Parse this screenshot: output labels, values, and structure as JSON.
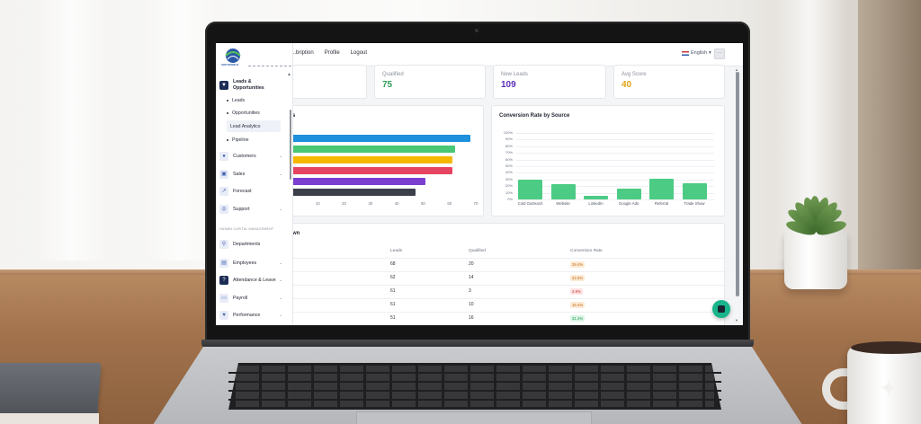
{
  "header": {
    "nav": [
      "...bription",
      "Profile",
      "Logout"
    ],
    "language": "English",
    "language_caret": "▾"
  },
  "sidebar": {
    "logo_text": "SOFTWORLD",
    "active_group": "Leads & Opportunities",
    "sub_items": [
      "Leads",
      "Opportunities",
      "Lead Analytics",
      "Pipeline"
    ],
    "groups": [
      {
        "label": "Customers",
        "icon": "person-icon"
      },
      {
        "label": "Sales",
        "icon": "sales-icon"
      },
      {
        "label": "Forecast",
        "icon": "forecast-icon"
      },
      {
        "label": "Support",
        "icon": "support-icon"
      }
    ],
    "section_label": "HUMAN CAPITAL MANAGEMENT",
    "hcm_groups": [
      {
        "label": "Departments",
        "icon": "departments-icon"
      },
      {
        "label": "Employees",
        "icon": "employees-icon"
      },
      {
        "label": "Attendance & Leave",
        "icon": "attendance-icon"
      },
      {
        "label": "Payroll",
        "icon": "payroll-icon"
      },
      {
        "label": "Performance",
        "icon": "performance-icon"
      }
    ]
  },
  "kpis": [
    {
      "label": "Qualified",
      "value": "75",
      "color": "#2e9e57"
    },
    {
      "label": "New Leads",
      "value": "109",
      "color": "#5b2fb8"
    },
    {
      "label": "Avg Score",
      "value": "40",
      "color": "#e0a413"
    }
  ],
  "left_chart_title_fragment": "s",
  "chart_data": [
    {
      "type": "bar",
      "orientation": "horizontal",
      "title": "",
      "x_ticks": [
        "10",
        "20",
        "30",
        "40",
        "50",
        "60",
        "70"
      ],
      "xlim": [
        0,
        70
      ],
      "values": [
        68,
        62,
        61,
        61,
        51,
        47
      ],
      "colors": [
        "#1e90dc",
        "#48c774",
        "#f5b800",
        "#e64561",
        "#7a3fd1",
        "#3b3f4a"
      ]
    },
    {
      "type": "bar",
      "title": "Conversion Rate by Source",
      "categories": [
        "Cold Outreach",
        "Website",
        "LinkedIn",
        "Google Ads",
        "Referral",
        "Trade Show"
      ],
      "values": [
        29.4,
        22.5,
        4.9,
        16.4,
        31.4,
        25.0
      ],
      "y_ticks": [
        "0%",
        "10%",
        "20%",
        "30%",
        "40%",
        "50%",
        "60%",
        "70%",
        "80%",
        "90%",
        "100%"
      ],
      "ylim": [
        0,
        100
      ],
      "color": "#4ccb84",
      "grid": true
    }
  ],
  "table": {
    "title_fragment": "wn",
    "headers": [
      "Leads",
      "Qualified",
      "Conversion Rate"
    ],
    "rows": [
      {
        "leads": "68",
        "qualified": "20",
        "rate": "29.4%",
        "tone": "orange"
      },
      {
        "leads": "62",
        "qualified": "14",
        "rate": "22.5%",
        "tone": "orange"
      },
      {
        "leads": "61",
        "qualified": "3",
        "rate": "4.9%",
        "tone": "red"
      },
      {
        "leads": "61",
        "qualified": "10",
        "rate": "16.4%",
        "tone": "orange"
      },
      {
        "leads": "51",
        "qualified": "16",
        "rate": "31.4%",
        "tone": "green"
      }
    ]
  },
  "watermark": "✦"
}
